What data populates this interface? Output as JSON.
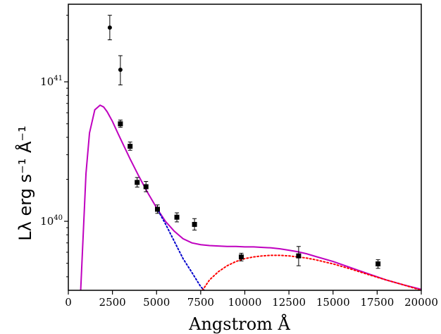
{
  "chart_data": {
    "type": "scatter",
    "title": "",
    "xlabel": "Angstrom Å",
    "ylabel": "Lλ erg s⁻¹ Å⁻¹",
    "xlim": [
      0,
      20000
    ],
    "ylim": [
      3.2e+39,
      3.6e+41
    ],
    "yscale": "log",
    "grid": false,
    "legend": "none",
    "x_ticks": [
      0,
      2500,
      5000,
      7500,
      10000,
      12500,
      15000,
      17500,
      20000
    ],
    "x_tick_labels": [
      "0",
      "2500",
      "5000",
      "7500",
      "10000",
      "12500",
      "15000",
      "17500",
      "20000"
    ],
    "y_ticks": [
      1e+40,
      1e+41
    ],
    "y_tick_labels": [
      {
        "base": "10",
        "exp": "40"
      },
      {
        "base": "10",
        "exp": "41"
      }
    ],
    "series": [
      {
        "marker": "circle",
        "color": "#000000",
        "points": [
          {
            "x": 2350,
            "y": 2.45e+41,
            "yerr_low": 4.5e+40,
            "yerr_high": 5.5e+40
          },
          {
            "x": 2950,
            "y": 1.22e+41,
            "yerr_low": 2.7e+40,
            "yerr_high": 3.2e+40
          }
        ]
      },
      {
        "marker": "square",
        "color": "#000000",
        "points": [
          {
            "x": 2950,
            "y": 5e+40,
            "yerr_low": 2.8e+39,
            "yerr_high": 3.2e+39
          },
          {
            "x": 3500,
            "y": 3.45e+40,
            "yerr_low": 2.2e+39,
            "yerr_high": 2.5e+39
          },
          {
            "x": 3900,
            "y": 1.9e+40,
            "yerr_low": 1.4e+39,
            "yerr_high": 1.6e+39
          },
          {
            "x": 4400,
            "y": 1.77e+40,
            "yerr_low": 1.4e+39,
            "yerr_high": 1.6e+39
          },
          {
            "x": 5050,
            "y": 1.22e+40,
            "yerr_low": 8e+38,
            "yerr_high": 9e+38
          },
          {
            "x": 6150,
            "y": 1.07e+40,
            "yerr_low": 8e+38,
            "yerr_high": 8e+38
          },
          {
            "x": 7150,
            "y": 9.5e+39,
            "yerr_low": 8.5e+38,
            "yerr_high": 9.5e+38
          },
          {
            "x": 9800,
            "y": 5.55e+39,
            "yerr_low": 3.5e+38,
            "yerr_high": 3.5e+38
          },
          {
            "x": 13050,
            "y": 5.65e+39,
            "yerr_low": 8.5e+38,
            "yerr_high": 9.5e+38
          },
          {
            "x": 17550,
            "y": 4.95e+39,
            "yerr_low": 3.5e+38,
            "yerr_high": 3.5e+38
          }
        ]
      }
    ],
    "curves": [
      {
        "style": "solid",
        "color": "#bf00bf",
        "x": [
          700,
          1000,
          1200,
          1500,
          1800,
          2000,
          2200,
          2500,
          2800,
          3000,
          3500,
          4000,
          4500,
          5000,
          5500,
          6000,
          6500,
          7000,
          7500,
          8000,
          8500,
          9000,
          9500,
          10000,
          10500,
          11000,
          11500,
          12000,
          12500,
          13000,
          13500,
          14000,
          15000,
          16000,
          17000,
          18000,
          19000,
          20000
        ],
        "y": [
          3.2e+39,
          2.2e+40,
          4.3e+40,
          6.3e+40,
          6.8e+40,
          6.6e+40,
          6.1e+40,
          5.2e+40,
          4.3e+40,
          3.8e+40,
          2.8e+40,
          2.1e+40,
          1.6e+40,
          1.25e+40,
          1e+40,
          8.5e+39,
          7.5e+39,
          7e+39,
          6.8e+39,
          6.7e+39,
          6.65e+39,
          6.6e+39,
          6.6e+39,
          6.55e+39,
          6.55e+39,
          6.5e+39,
          6.45e+39,
          6.35e+39,
          6.2e+39,
          6.05e+39,
          5.85e+39,
          5.6e+39,
          5.15e+39,
          4.65e+39,
          4.2e+39,
          3.8e+39,
          3.5e+39,
          3.25e+39
        ]
      },
      {
        "style": "dotted",
        "color": "#0000cc",
        "x": [
          5000,
          5500,
          6000,
          6500,
          7000,
          7500,
          7700
        ],
        "y": [
          1.25e+40,
          9.6e+39,
          7.2e+39,
          5.4e+39,
          4.3e+39,
          3.4e+39,
          3.2e+39
        ]
      },
      {
        "style": "dotted",
        "color": "#ff0000",
        "x": [
          7600,
          8000,
          8500,
          9000,
          9500,
          10000,
          10500,
          11000,
          11500,
          12000,
          12500,
          13000,
          13500,
          14000,
          15000,
          16000,
          17000,
          18000,
          19000,
          20000
        ],
        "y": [
          3.2e+39,
          3.8e+39,
          4.35e+39,
          4.8e+39,
          5.15e+39,
          5.4e+39,
          5.55e+39,
          5.65e+39,
          5.7e+39,
          5.7e+39,
          5.65e+39,
          5.55e+39,
          5.45e+39,
          5.3e+39,
          4.95e+39,
          4.55e+39,
          4.15e+39,
          3.8e+39,
          3.5e+39,
          3.2e+39
        ]
      }
    ]
  }
}
